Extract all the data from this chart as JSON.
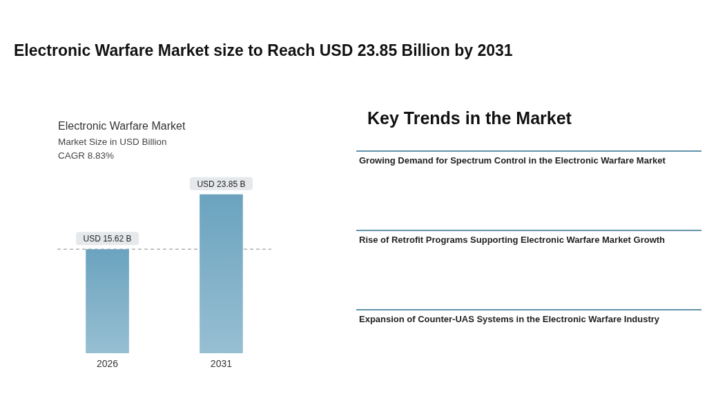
{
  "chart_data": [
    {
      "type": "bar",
      "title": "Electronic Warfare Market size to Reach USD 23.85 Billion by 2031",
      "subtitle": "Electronic Warfare Market",
      "annotations": [
        "Market Size in USD Billion",
        "CAGR 8.83%"
      ],
      "categories": [
        "2026",
        "2031"
      ],
      "values": [
        15.62,
        23.85
      ],
      "value_labels": [
        "USD 15.62 B",
        "USD 23.85 B"
      ],
      "color": "#6ba3bf",
      "ref_lines": [
        {
          "axis": "y",
          "value": 15.62,
          "line_style": "dashed",
          "color": "#888888"
        }
      ]
    },
    {
      "type": "other",
      "title": "Key Trends in the Market",
      "annotations": [
        "Growing Demand for Spectrum Control in the Electronic Warfare Market",
        "Rise of Retrofit Programs Supporting Electronic Warfare Market Growth",
        "Expansion of Counter-UAS Systems in the Electronic Warfare Industry"
      ]
    }
  ]
}
